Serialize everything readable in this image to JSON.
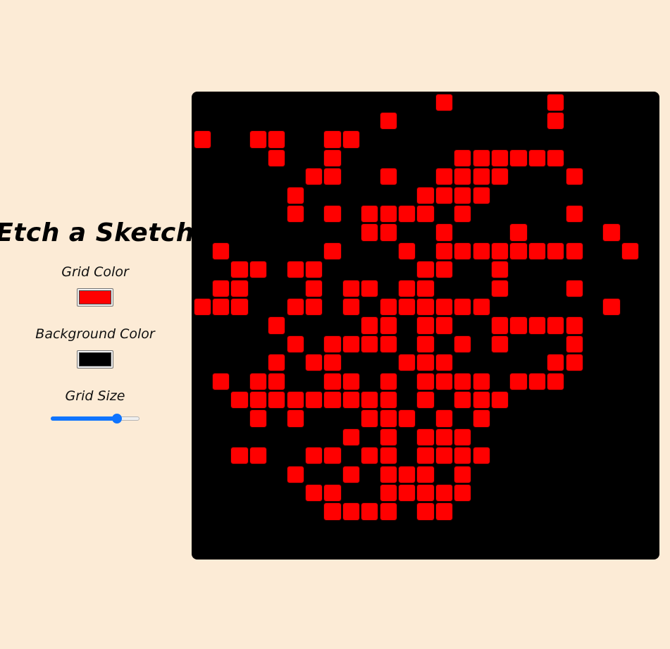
{
  "app": {
    "title": "Etch a Sketch"
  },
  "controls": {
    "grid_color": {
      "label": "Grid Color",
      "value": "#ff0000"
    },
    "background_color": {
      "label": "Background Color",
      "value": "#000000"
    },
    "grid_size": {
      "label": "Grid Size",
      "min": 1,
      "max": 32,
      "value": 25
    }
  },
  "grid": {
    "rows": 25,
    "cols": 25,
    "cell_color": "#ff0000",
    "background": "#000000",
    "filled": [
      [
        0,
        13
      ],
      [
        0,
        19
      ],
      [
        1,
        10
      ],
      [
        1,
        19
      ],
      [
        2,
        0
      ],
      [
        2,
        3
      ],
      [
        2,
        4
      ],
      [
        2,
        7
      ],
      [
        2,
        8
      ],
      [
        3,
        4
      ],
      [
        3,
        7
      ],
      [
        3,
        14
      ],
      [
        3,
        15
      ],
      [
        3,
        16
      ],
      [
        3,
        17
      ],
      [
        3,
        18
      ],
      [
        3,
        19
      ],
      [
        4,
        6
      ],
      [
        4,
        7
      ],
      [
        4,
        10
      ],
      [
        4,
        13
      ],
      [
        4,
        14
      ],
      [
        4,
        15
      ],
      [
        4,
        16
      ],
      [
        4,
        20
      ],
      [
        5,
        5
      ],
      [
        5,
        12
      ],
      [
        5,
        13
      ],
      [
        5,
        14
      ],
      [
        5,
        15
      ],
      [
        6,
        5
      ],
      [
        6,
        7
      ],
      [
        6,
        9
      ],
      [
        6,
        10
      ],
      [
        6,
        11
      ],
      [
        6,
        12
      ],
      [
        6,
        14
      ],
      [
        6,
        20
      ],
      [
        7,
        9
      ],
      [
        7,
        10
      ],
      [
        7,
        13
      ],
      [
        7,
        17
      ],
      [
        7,
        22
      ],
      [
        8,
        1
      ],
      [
        8,
        7
      ],
      [
        8,
        11
      ],
      [
        8,
        13
      ],
      [
        8,
        14
      ],
      [
        8,
        15
      ],
      [
        8,
        16
      ],
      [
        8,
        17
      ],
      [
        8,
        18
      ],
      [
        8,
        19
      ],
      [
        8,
        20
      ],
      [
        8,
        23
      ],
      [
        9,
        2
      ],
      [
        9,
        3
      ],
      [
        9,
        5
      ],
      [
        9,
        6
      ],
      [
        9,
        12
      ],
      [
        9,
        13
      ],
      [
        9,
        16
      ],
      [
        10,
        1
      ],
      [
        10,
        2
      ],
      [
        10,
        6
      ],
      [
        10,
        8
      ],
      [
        10,
        9
      ],
      [
        10,
        11
      ],
      [
        10,
        12
      ],
      [
        10,
        16
      ],
      [
        10,
        20
      ],
      [
        11,
        0
      ],
      [
        11,
        1
      ],
      [
        11,
        2
      ],
      [
        11,
        5
      ],
      [
        11,
        6
      ],
      [
        11,
        8
      ],
      [
        11,
        10
      ],
      [
        11,
        11
      ],
      [
        11,
        12
      ],
      [
        11,
        13
      ],
      [
        11,
        14
      ],
      [
        11,
        15
      ],
      [
        11,
        22
      ],
      [
        12,
        4
      ],
      [
        12,
        9
      ],
      [
        12,
        10
      ],
      [
        12,
        12
      ],
      [
        12,
        13
      ],
      [
        12,
        16
      ],
      [
        12,
        17
      ],
      [
        12,
        18
      ],
      [
        12,
        19
      ],
      [
        12,
        20
      ],
      [
        13,
        5
      ],
      [
        13,
        7
      ],
      [
        13,
        8
      ],
      [
        13,
        9
      ],
      [
        13,
        10
      ],
      [
        13,
        12
      ],
      [
        13,
        14
      ],
      [
        13,
        16
      ],
      [
        13,
        20
      ],
      [
        14,
        4
      ],
      [
        14,
        6
      ],
      [
        14,
        7
      ],
      [
        14,
        11
      ],
      [
        14,
        12
      ],
      [
        14,
        13
      ],
      [
        14,
        19
      ],
      [
        14,
        20
      ],
      [
        15,
        1
      ],
      [
        15,
        3
      ],
      [
        15,
        4
      ],
      [
        15,
        7
      ],
      [
        15,
        8
      ],
      [
        15,
        10
      ],
      [
        15,
        12
      ],
      [
        15,
        13
      ],
      [
        15,
        14
      ],
      [
        15,
        15
      ],
      [
        15,
        17
      ],
      [
        15,
        18
      ],
      [
        15,
        19
      ],
      [
        16,
        2
      ],
      [
        16,
        3
      ],
      [
        16,
        4
      ],
      [
        16,
        5
      ],
      [
        16,
        6
      ],
      [
        16,
        7
      ],
      [
        16,
        8
      ],
      [
        16,
        9
      ],
      [
        16,
        10
      ],
      [
        16,
        12
      ],
      [
        16,
        14
      ],
      [
        16,
        15
      ],
      [
        16,
        16
      ],
      [
        17,
        3
      ],
      [
        17,
        5
      ],
      [
        17,
        9
      ],
      [
        17,
        10
      ],
      [
        17,
        11
      ],
      [
        17,
        13
      ],
      [
        17,
        15
      ],
      [
        18,
        8
      ],
      [
        18,
        10
      ],
      [
        18,
        12
      ],
      [
        18,
        13
      ],
      [
        18,
        14
      ],
      [
        19,
        2
      ],
      [
        19,
        3
      ],
      [
        19,
        6
      ],
      [
        19,
        7
      ],
      [
        19,
        9
      ],
      [
        19,
        10
      ],
      [
        19,
        12
      ],
      [
        19,
        13
      ],
      [
        19,
        14
      ],
      [
        19,
        15
      ],
      [
        20,
        5
      ],
      [
        20,
        8
      ],
      [
        20,
        10
      ],
      [
        20,
        11
      ],
      [
        20,
        12
      ],
      [
        20,
        14
      ],
      [
        21,
        6
      ],
      [
        21,
        7
      ],
      [
        21,
        10
      ],
      [
        21,
        11
      ],
      [
        21,
        12
      ],
      [
        21,
        13
      ],
      [
        21,
        14
      ],
      [
        22,
        7
      ],
      [
        22,
        8
      ],
      [
        22,
        9
      ],
      [
        22,
        10
      ],
      [
        22,
        12
      ],
      [
        22,
        13
      ]
    ]
  }
}
